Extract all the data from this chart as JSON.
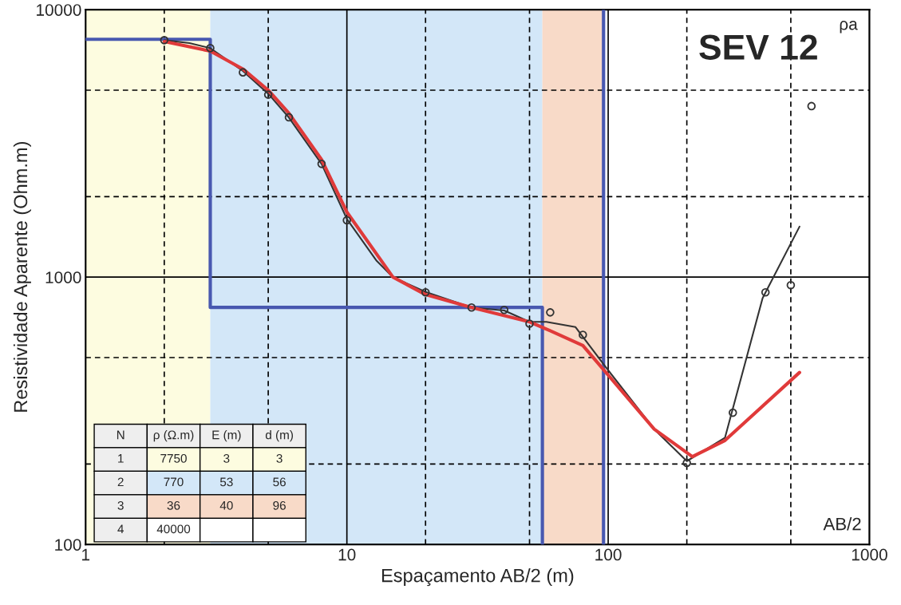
{
  "chart_data": {
    "type": "line",
    "title": "SEV 12",
    "xlabel": "Espaçamento AB/2 (m)",
    "ylabel": "Resistividade Aparente (Ohm.m)",
    "log": "xy",
    "grid": true,
    "xlim": [
      1,
      1000
    ],
    "xticks": [
      1,
      {
        "value": 2,
        "label": null
      },
      {
        "value": 5,
        "label": null
      },
      10,
      {
        "value": 20,
        "label": null
      },
      {
        "value": 50,
        "label": null
      },
      100,
      {
        "value": 200,
        "label": null
      },
      {
        "value": 500,
        "label": null
      },
      1000
    ],
    "ylim": [
      100,
      10000
    ],
    "yticks": [
      100,
      {
        "value": 200,
        "label": null
      },
      {
        "value": 500,
        "label": null
      },
      1000,
      {
        "value": 2000,
        "label": null
      },
      {
        "value": 5000,
        "label": null
      },
      10000
    ],
    "bands": [
      {
        "axis": "x",
        "from": 1,
        "to": 3,
        "color": "#fdfce0"
      },
      {
        "axis": "x",
        "from": 3,
        "to": 56,
        "color": "#d3e7f8"
      },
      {
        "axis": "x",
        "from": 56,
        "to": 96,
        "color": "#f8dac8"
      }
    ],
    "ref_lines": [
      {
        "axis": "x",
        "value": 96,
        "color": "#4858b0"
      }
    ],
    "series": [
      {
        "type": "step",
        "color": "#4858b0",
        "x": [
          1,
          3,
          56,
          56
        ],
        "values": [
          7750,
          770,
          770,
          100
        ]
      },
      {
        "color": "#333333",
        "x": [
          2,
          2.5,
          3,
          4,
          5,
          6,
          8,
          10,
          13,
          15,
          20,
          30,
          40,
          50,
          58,
          75,
          98,
          150,
          200,
          280,
          390,
          540
        ],
        "values": [
          7690,
          7500,
          7180,
          5900,
          4850,
          3950,
          2650,
          1650,
          1150,
          1000,
          880,
          770,
          750,
          680,
          680,
          650,
          460,
          270,
          205,
          251,
          835,
          1545
        ]
      },
      {
        "color": "#e03a3a",
        "x": [
          2,
          3,
          4,
          5,
          6,
          8,
          10,
          15,
          20,
          30,
          50,
          60,
          80,
          100,
          150,
          210,
          280,
          540
        ],
        "values": [
          7600,
          7000,
          6000,
          5000,
          4100,
          2750,
          1750,
          1000,
          860,
          770,
          680,
          630,
          555,
          430,
          270,
          213,
          245,
          440
        ]
      },
      {
        "type": "scatter",
        "color": "#333333",
        "marker": "circle",
        "x": [
          2,
          3,
          4,
          5,
          6,
          8,
          10,
          20,
          30,
          40,
          50,
          60,
          80,
          200,
          300,
          400,
          500,
          600
        ],
        "values": [
          7690,
          7180,
          5830,
          4810,
          3960,
          2650,
          1630,
          877,
          770,
          754,
          670,
          738,
          608,
          202,
          311,
          877,
          933,
          4360
        ]
      }
    ],
    "annotations": [
      "ρa",
      "AB/2",
      "N",
      "ρ (Ω.m)",
      "E (m)",
      "d (m)",
      "1",
      "7750",
      "3",
      "3",
      "2",
      "770",
      "53",
      "56",
      "3",
      "36",
      "40",
      "96",
      "4",
      "40000"
    ]
  }
}
